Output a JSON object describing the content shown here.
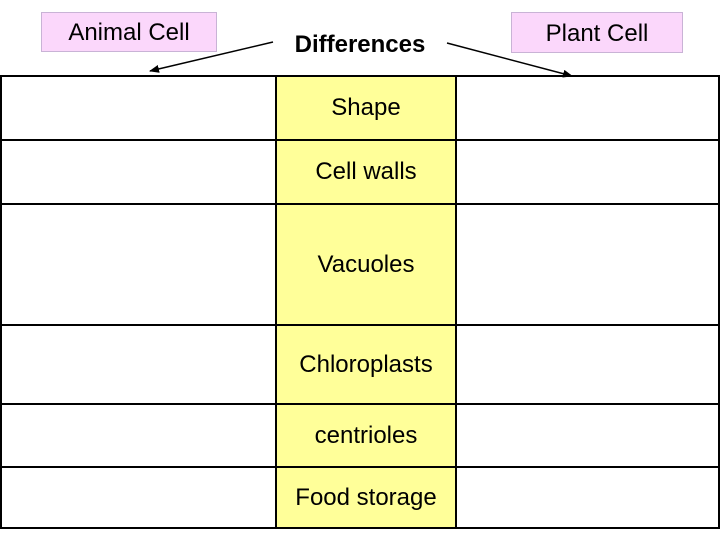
{
  "headers": {
    "animal": "Animal Cell",
    "differences": "Differences",
    "plant": "Plant Cell"
  },
  "colors": {
    "header_fill": "#fbd7fb",
    "differences_fill": "#ffff99",
    "border": "#000000"
  },
  "rows": [
    {
      "difference": "Shape",
      "animal": "",
      "plant": ""
    },
    {
      "difference": "Cell walls",
      "animal": "",
      "plant": ""
    },
    {
      "difference": "Vacuoles",
      "animal": "",
      "plant": ""
    },
    {
      "difference": "Chloroplasts",
      "animal": "",
      "plant": ""
    },
    {
      "difference": "centrioles",
      "animal": "",
      "plant": ""
    },
    {
      "difference": "Food storage",
      "animal": "",
      "plant": ""
    }
  ]
}
